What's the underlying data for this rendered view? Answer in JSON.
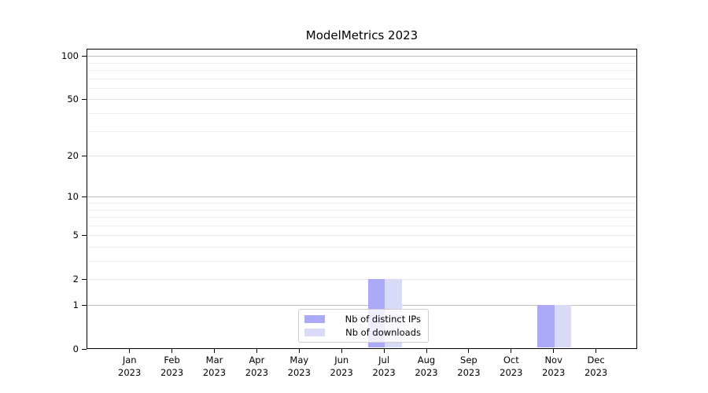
{
  "chart_data": {
    "type": "bar",
    "title": "ModelMetrics 2023",
    "categories": [
      "Jan",
      "Feb",
      "Mar",
      "Apr",
      "May",
      "Jun",
      "Jul",
      "Aug",
      "Sep",
      "Oct",
      "Nov",
      "Dec"
    ],
    "category_year": "2023",
    "series": [
      {
        "name": "Nb of distinct IPs",
        "color": "#aaaaf8",
        "values": [
          0,
          0,
          0,
          0,
          0,
          0,
          2,
          0,
          0,
          0,
          1,
          0
        ]
      },
      {
        "name": "Nb of downloads",
        "color": "#d9d9f8",
        "values": [
          0,
          0,
          0,
          0,
          0,
          0,
          2,
          0,
          0,
          0,
          1,
          0
        ]
      }
    ],
    "yscale": "log1p",
    "ylim": [
      0,
      112
    ],
    "yticks": [
      0,
      1,
      2,
      5,
      10,
      20,
      50,
      100
    ],
    "power_gridlines": [
      1,
      10,
      100
    ],
    "labeled_gridlines": [
      2,
      5,
      20,
      50
    ],
    "minor_gridlines": [
      3,
      4,
      6,
      7,
      8,
      9,
      30,
      40,
      60,
      70,
      80,
      90
    ],
    "grid": true,
    "legend_position": "lower center",
    "colors": {
      "spine": "#000000",
      "power_grid": "#bbbbbb",
      "labeled_grid": "#e6e6e6",
      "minor_grid": "#f0f0f0",
      "text": "#000000"
    }
  },
  "legend": {
    "items": [
      {
        "label": "Nb of distinct IPs"
      },
      {
        "label": "Nb of downloads"
      }
    ]
  }
}
